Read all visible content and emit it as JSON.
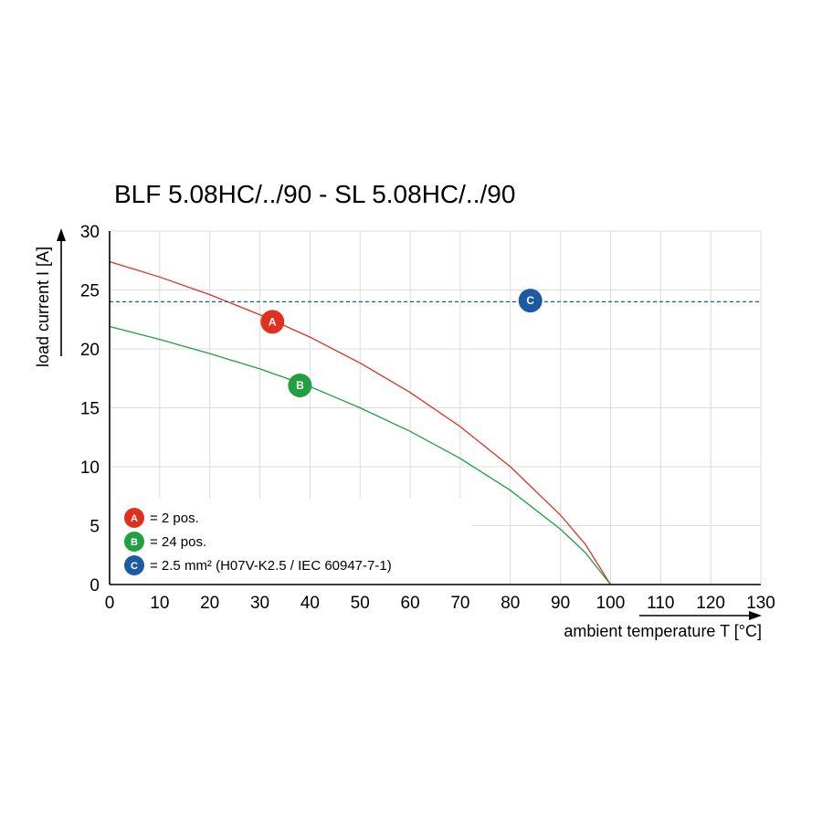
{
  "chart_data": {
    "type": "line",
    "title": "BLF 5.08HC/../90 - SL 5.08HC/../90",
    "xlabel": "ambient temperature T [°C]",
    "ylabel": "load current I [A]",
    "xlim": [
      0,
      130
    ],
    "ylim": [
      0,
      30
    ],
    "xticks": [
      0,
      10,
      20,
      30,
      40,
      50,
      60,
      70,
      80,
      90,
      100,
      110,
      120,
      130
    ],
    "yticks": [
      0,
      5,
      10,
      15,
      20,
      25,
      30
    ],
    "grid": true,
    "legend_position": "bottom-left",
    "series": [
      {
        "name": "A",
        "legend": "= 2 pos.",
        "color": "#e03020",
        "style": "solid",
        "x": [
          0,
          10,
          20,
          30,
          40,
          50,
          60,
          70,
          80,
          90,
          95,
          100
        ],
        "y": [
          27.4,
          26.1,
          24.6,
          22.9,
          21.0,
          18.8,
          16.3,
          13.4,
          10.0,
          5.9,
          3.4,
          0
        ],
        "marker_at": [
          32.5,
          22.3
        ]
      },
      {
        "name": "B",
        "legend": "= 24 pos.",
        "color": "#20a040",
        "style": "solid",
        "x": [
          0,
          10,
          20,
          30,
          40,
          50,
          60,
          70,
          80,
          90,
          95,
          100
        ],
        "y": [
          21.9,
          20.8,
          19.6,
          18.3,
          16.8,
          15.0,
          13.0,
          10.7,
          8.0,
          4.7,
          2.7,
          0
        ],
        "marker_at": [
          38,
          16.9
        ]
      },
      {
        "name": "C",
        "legend": "= 2.5 mm² (H07V-K2.5 / IEC 60947-7-1)",
        "color": "#1c5aa6",
        "style": "dashed",
        "x": [
          0,
          130
        ],
        "y": [
          24,
          24
        ],
        "marker_at": [
          84,
          24.1
        ]
      }
    ]
  }
}
